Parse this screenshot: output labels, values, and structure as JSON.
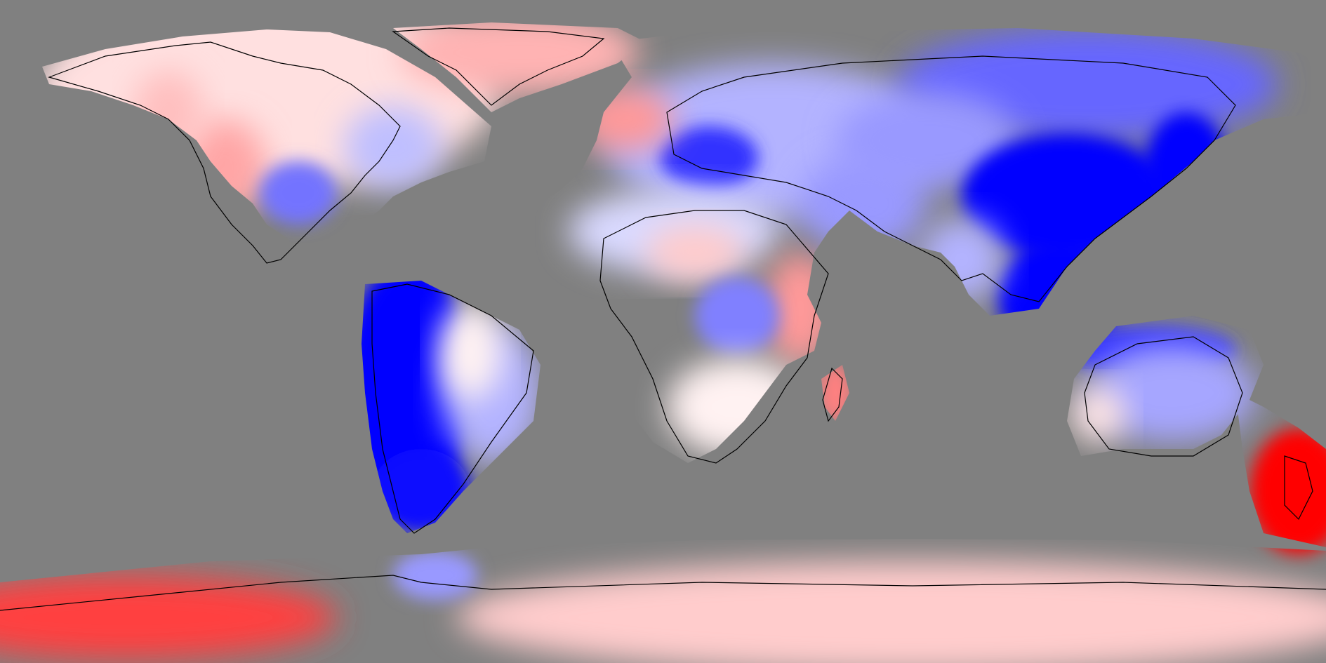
{
  "map": {
    "projection": "equirectangular",
    "background_color": "#808080",
    "coastline_color": "#000000",
    "scale": {
      "type": "diverging",
      "low_color": "#0000ff",
      "mid_color": "#ffffff",
      "high_color": "#ff0000"
    },
    "regions": [
      {
        "name": "north-america",
        "level": 0.12
      },
      {
        "name": "usa-southwest",
        "level": 0.35
      },
      {
        "name": "canada-west",
        "level": 0.25
      },
      {
        "name": "usa-central",
        "level": -0.55
      },
      {
        "name": "usa-east",
        "level": -0.25
      },
      {
        "name": "greenland",
        "level": 0.3
      },
      {
        "name": "south-america-west",
        "level": -1.0
      },
      {
        "name": "south-america-east",
        "level": -0.3
      },
      {
        "name": "brazil-east",
        "level": 0.05
      },
      {
        "name": "patagonia",
        "level": -0.95
      },
      {
        "name": "europe",
        "level": -0.3
      },
      {
        "name": "italy-alps",
        "level": -0.8
      },
      {
        "name": "iceland-sea",
        "level": 0.4
      },
      {
        "name": "north-africa",
        "level": -0.15
      },
      {
        "name": "sahara",
        "level": 0.2
      },
      {
        "name": "east-africa",
        "level": 0.4
      },
      {
        "name": "central-africa",
        "level": -0.5
      },
      {
        "name": "southern-africa",
        "level": 0.05
      },
      {
        "name": "madagascar",
        "level": 0.5
      },
      {
        "name": "middle-east",
        "level": -0.4
      },
      {
        "name": "siberia",
        "level": -0.6
      },
      {
        "name": "central-asia",
        "level": -0.4
      },
      {
        "name": "china",
        "level": -1.0
      },
      {
        "name": "southeast-asia",
        "level": -1.0
      },
      {
        "name": "japan",
        "level": -1.0
      },
      {
        "name": "india",
        "level": -0.3
      },
      {
        "name": "indonesia",
        "level": -0.8
      },
      {
        "name": "australia",
        "level": -0.35
      },
      {
        "name": "australia-west",
        "level": 0.1
      },
      {
        "name": "new-zealand",
        "level": 1.0
      },
      {
        "name": "antarctica-west",
        "level": 0.75
      },
      {
        "name": "antarctica-east",
        "level": 0.2
      },
      {
        "name": "antarctic-peninsula",
        "level": -0.4
      }
    ]
  }
}
